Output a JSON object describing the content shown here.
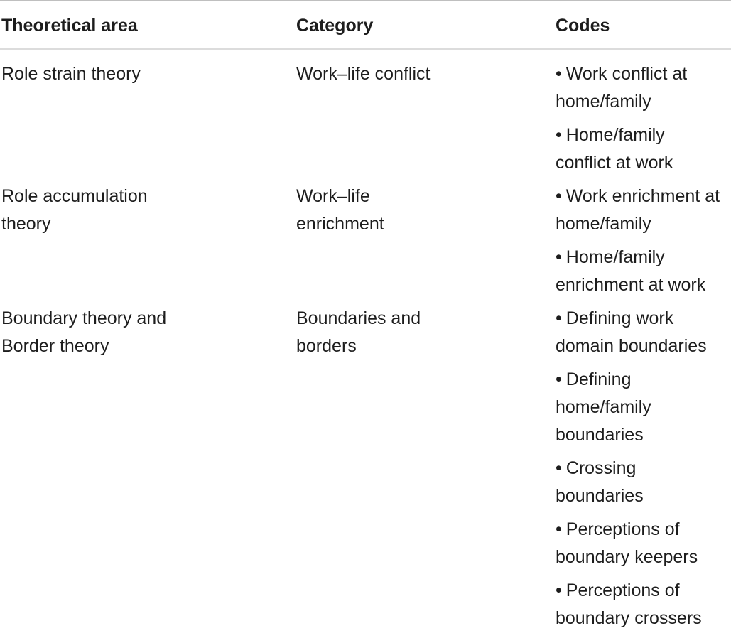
{
  "table": {
    "bullet": "•",
    "headers": [
      "Theoretical area",
      "Category",
      "Codes"
    ],
    "rows": [
      {
        "theoretical_area": "Role strain theory",
        "category": "Work–life conflict",
        "codes": [
          "Work conflict at home/family",
          "Home/family conflict at work"
        ]
      },
      {
        "theoretical_area": "Role accumulation theory",
        "category": "Work–life enrichment",
        "codes": [
          "Work enrichment at home/family",
          "Home/family enrichment at work"
        ]
      },
      {
        "theoretical_area": "Boundary theory and Border theory",
        "category": "Boundaries and borders",
        "codes": [
          "Defining work domain boundaries",
          "Defining home/family boundaries",
          "Crossing boundaries",
          "Perceptions of boundary keepers",
          "Perceptions of boundary crossers"
        ]
      }
    ]
  },
  "colors": {
    "text": "#1d1d1d",
    "rule_top": "#bfbfbf",
    "rule_header": "#dcdcdc"
  }
}
